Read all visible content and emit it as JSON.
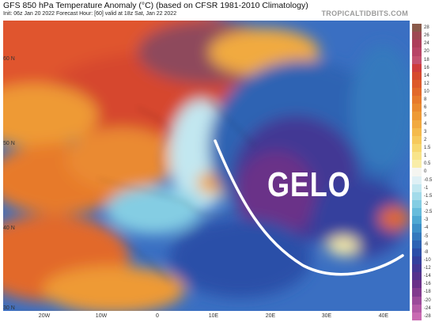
{
  "header": {
    "title": "GFS 850 hPa Temperature Anomaly (°C) (based on CFSR 1981-2010 Climatology)",
    "subtitle": "Init: 06z Jan 20 2022   Forecast Hour: [60]   valid at 18z Sat, Jan 22 2022",
    "brand": "TROPICALTIDBITS.COM"
  },
  "map": {
    "overlay_text": "GELO",
    "lat_labels": [
      "60 N",
      "50 N",
      "40 N",
      "30 N"
    ],
    "lon_labels": [
      "20W",
      "10W",
      "0",
      "10E",
      "20E",
      "30E",
      "40E"
    ]
  },
  "colorbar": {
    "labels": [
      "28",
      "26",
      "24",
      "20",
      "18",
      "16",
      "14",
      "12",
      "10",
      "8",
      "6",
      "5",
      "4",
      "3",
      "2",
      "1.5",
      "1",
      "0.5",
      "0",
      "-0.5",
      "-1",
      "-1.5",
      "-2",
      "-2.5",
      "-3",
      "-4",
      "-5",
      "-6",
      "-8",
      "-10",
      "-12",
      "-14",
      "-16",
      "-18",
      "-20",
      "-24",
      "-28"
    ],
    "colors": [
      "#8a5a4a",
      "#9e4a52",
      "#ad3f5b",
      "#b84566",
      "#c45270",
      "#cf3d3d",
      "#d64a2e",
      "#dd5a2a",
      "#e2692a",
      "#e77a2c",
      "#ea8a30",
      "#ee9a36",
      "#f1aa40",
      "#f4ba4c",
      "#f6c95c",
      "#f7d870",
      "#f8e48a",
      "#f9eda8",
      "#f5f5f0",
      "#dff0f5",
      "#c2e7f0",
      "#a3dbea",
      "#84cde3",
      "#67bcdc",
      "#4ea8d3",
      "#3d90c8",
      "#3479bd",
      "#2e63b3",
      "#2c4fa8",
      "#34409d",
      "#433794",
      "#55328c",
      "#6a3088",
      "#823a8e",
      "#9c4a9a",
      "#b45aa6",
      "#c96ab2"
    ]
  }
}
